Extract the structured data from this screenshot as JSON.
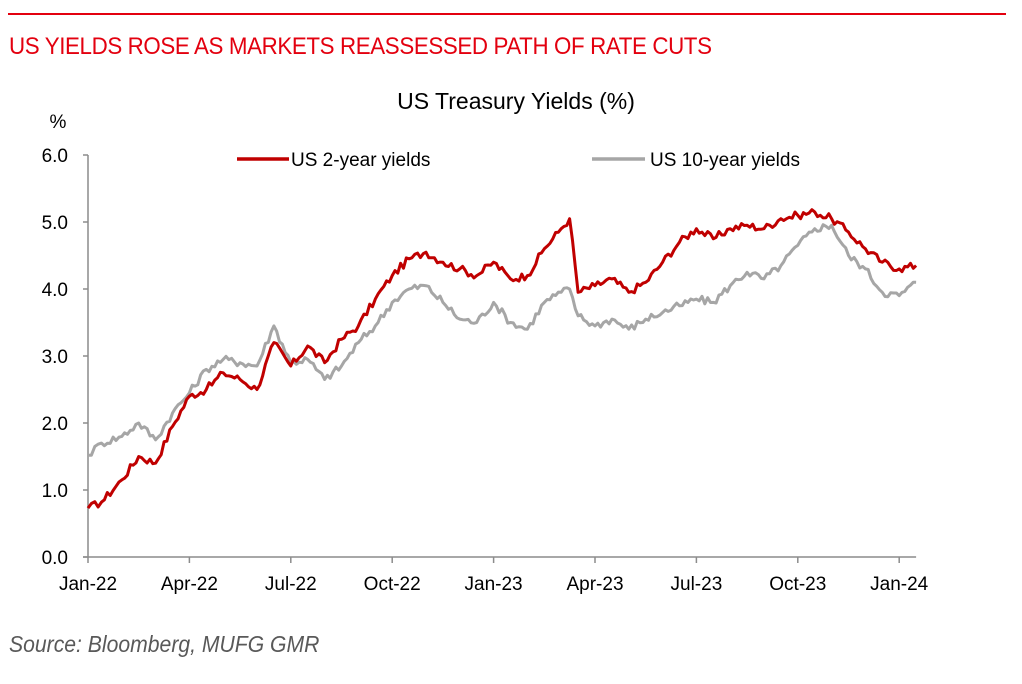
{
  "page": {
    "headline": "US YIELDS ROSE AS MARKETS REASSESSED PATH OF RATE CUTS",
    "source": "Source: Bloomberg, MUFG GMR",
    "colors": {
      "brand_red": "#e3000f",
      "series_2y": "#c00000",
      "series_10y": "#a6a6a6",
      "axis": "#8c8c8c"
    }
  },
  "chart_data": {
    "type": "line",
    "title": "US Treasury Yields (%)",
    "ylabel": "%",
    "xlabel": "",
    "ylim": [
      0,
      6
    ],
    "yticks": [
      "0.0",
      "1.0",
      "2.0",
      "3.0",
      "4.0",
      "5.0",
      "6.0"
    ],
    "ytick_values": [
      0,
      1,
      2,
      3,
      4,
      5,
      6
    ],
    "xticks": [
      "Jan-22",
      "Apr-22",
      "Jul-22",
      "Oct-22",
      "Jan-23",
      "Apr-23",
      "Jul-23",
      "Oct-23",
      "Jan-24"
    ],
    "xtick_months": [
      0,
      3,
      6,
      9,
      12,
      15,
      18,
      21,
      24
    ],
    "xlim_months": [
      0,
      24.5
    ],
    "grid": false,
    "legend_position": "top",
    "x_months": [
      0,
      0.4,
      1,
      1.5,
      2,
      2.5,
      3,
      3.5,
      4,
      4.5,
      5,
      5.5,
      6,
      6.5,
      7,
      7.5,
      8,
      8.5,
      9,
      9.5,
      10,
      10.5,
      11,
      11.5,
      12,
      12.5,
      13,
      13.5,
      14,
      14.25,
      14.5,
      15,
      15.5,
      16,
      16.5,
      17,
      17.5,
      18,
      18.5,
      19,
      19.5,
      20,
      20.5,
      21,
      21.5,
      22,
      22.5,
      23,
      23.5,
      24,
      24.5
    ],
    "series": [
      {
        "name": "US 2-year yields",
        "color": "#c00000",
        "values": [
          0.73,
          0.82,
          1.15,
          1.5,
          1.4,
          1.95,
          2.4,
          2.5,
          2.75,
          2.65,
          2.5,
          3.2,
          2.85,
          3.15,
          2.9,
          3.25,
          3.45,
          3.85,
          4.2,
          4.45,
          4.55,
          4.4,
          4.3,
          4.2,
          4.4,
          4.15,
          4.2,
          4.6,
          4.9,
          5.05,
          3.95,
          4.05,
          4.15,
          3.95,
          4.1,
          4.4,
          4.7,
          4.9,
          4.75,
          4.9,
          4.95,
          4.9,
          5.05,
          5.1,
          5.15,
          5.05,
          4.85,
          4.6,
          4.4,
          4.3,
          4.35
        ]
      },
      {
        "name": "US 10-year yields",
        "color": "#a6a6a6",
        "values": [
          1.52,
          1.7,
          1.8,
          2.0,
          1.75,
          2.15,
          2.45,
          2.8,
          2.95,
          2.9,
          2.85,
          3.45,
          2.9,
          2.95,
          2.65,
          2.85,
          3.2,
          3.45,
          3.8,
          4.0,
          4.05,
          3.8,
          3.55,
          3.5,
          3.8,
          3.5,
          3.4,
          3.8,
          3.95,
          4.0,
          3.6,
          3.45,
          3.55,
          3.4,
          3.55,
          3.65,
          3.75,
          3.85,
          3.8,
          4.05,
          4.25,
          4.15,
          4.35,
          4.65,
          4.9,
          4.95,
          4.5,
          4.3,
          3.95,
          3.9,
          4.1
        ]
      }
    ]
  }
}
